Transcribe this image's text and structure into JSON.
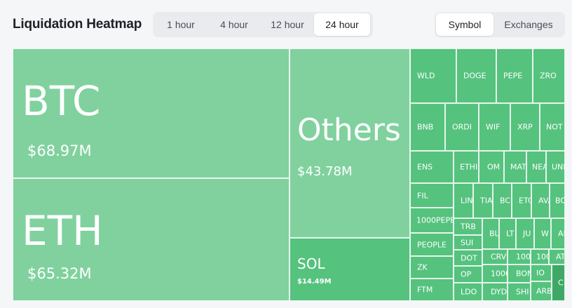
{
  "header": {
    "title": "Liquidation Heatmap",
    "time_tabs": [
      {
        "label": "1 hour",
        "active": false
      },
      {
        "label": "4 hour",
        "active": false
      },
      {
        "label": "12 hour",
        "active": false
      },
      {
        "label": "24 hour",
        "active": true
      }
    ],
    "view_tabs": [
      {
        "label": "Symbol",
        "active": true
      },
      {
        "label": "Exchanges",
        "active": false
      }
    ]
  },
  "heatmap": {
    "btc": {
      "symbol": "BTC",
      "value": "$68.97M"
    },
    "eth": {
      "symbol": "ETH",
      "value": "$65.32M"
    },
    "others": {
      "symbol": "Others",
      "value": "$43.78M"
    },
    "sol": {
      "symbol": "SOL",
      "value": "$14.49M"
    },
    "small": [
      "WLD",
      "DOGE",
      "PEPE",
      "ZRO",
      "BNB",
      "ORDI",
      "WIF",
      "XRP",
      "NOT",
      "ENS",
      "ETHI",
      "OM",
      "MAT",
      "NEA",
      "UNI",
      "FIL",
      "LIN",
      "TIA",
      "BC",
      "ETC",
      "AVA",
      "BO",
      "1000PEPE",
      "TRB",
      "BL",
      "LT",
      "JU",
      "W",
      "AI",
      "PEOPLE",
      "SUI",
      "CRV",
      "1000",
      "1000",
      "AT",
      "ZK",
      "DOT",
      "OP",
      "1000",
      "BON",
      "IO",
      "FTM",
      "LDO",
      "DYD",
      "SHI",
      "ARB",
      "C"
    ]
  },
  "colors": {
    "light": "#80d19e",
    "mid": "#61c987",
    "dark": "#55c27e",
    "darker": "#3fa866"
  }
}
